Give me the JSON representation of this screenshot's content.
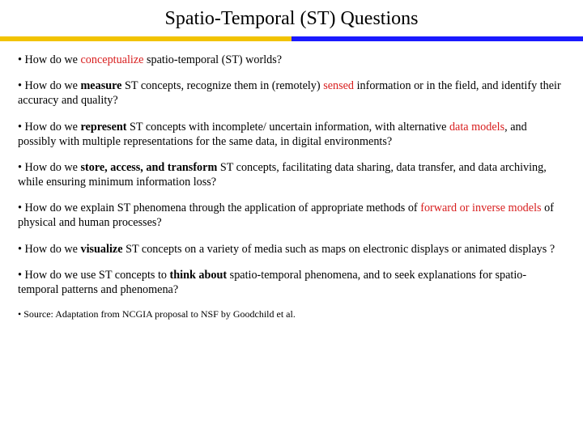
{
  "slide": {
    "title": "Spatio-Temporal (ST) Questions",
    "divider_colors": {
      "left": "#f2c300",
      "right": "#1a1aff"
    },
    "bullets": [
      {
        "runs": [
          {
            "t": "• How do we ",
            "style": ""
          },
          {
            "t": "conceptualize",
            "style": "red"
          },
          {
            "t": " spatio-temporal (ST) worlds?",
            "style": ""
          }
        ]
      },
      {
        "runs": [
          {
            "t": "• How do we ",
            "style": ""
          },
          {
            "t": "measure",
            "style": "bold"
          },
          {
            "t": " ST concepts, recognize them in (remotely) ",
            "style": ""
          },
          {
            "t": "sensed",
            "style": "red"
          },
          {
            "t": " information or in the field, and identify their accuracy and quality?",
            "style": ""
          }
        ]
      },
      {
        "runs": [
          {
            "t": "• How do we ",
            "style": ""
          },
          {
            "t": "represent",
            "style": "bold"
          },
          {
            "t": " ST concepts with incomplete/ uncertain information, with alternative ",
            "style": ""
          },
          {
            "t": "data models",
            "style": "red"
          },
          {
            "t": ", and possibly with multiple representations for the same data, in digital environments?",
            "style": ""
          }
        ]
      },
      {
        "runs": [
          {
            "t": "• How do we ",
            "style": ""
          },
          {
            "t": "store, access, and transform",
            "style": "bold"
          },
          {
            "t": " ST concepts, facilitating data sharing, data transfer, and data archiving, while ensuring minimum information loss?",
            "style": ""
          }
        ]
      },
      {
        "runs": [
          {
            "t": "• How do we explain ST phenomena through the application of appropriate methods of ",
            "style": ""
          },
          {
            "t": "forward or inverse models",
            "style": "red"
          },
          {
            "t": " of physical and human processes?",
            "style": ""
          }
        ]
      },
      {
        "runs": [
          {
            "t": "• How do we ",
            "style": ""
          },
          {
            "t": "visualize",
            "style": "bold"
          },
          {
            "t": " ST concepts on a variety of media such as maps on electronic displays or animated displays ?",
            "style": ""
          }
        ]
      },
      {
        "runs": [
          {
            "t": "• How do we use ST concepts to ",
            "style": ""
          },
          {
            "t": "think about",
            "style": "bold"
          },
          {
            "t": " spatio-temporal  phenomena, and to seek explanations for spatio-temporal patterns and phenomena?",
            "style": ""
          }
        ]
      },
      {
        "runs": [
          {
            "t": "• Source: Adaptation from NCGIA proposal to NSF by Goodchild et al.",
            "style": ""
          }
        ],
        "small": true
      }
    ],
    "fontsize_body": 14.2,
    "fontsize_source": 12,
    "color_red": "#d81e1e",
    "background_color": "#ffffff"
  }
}
